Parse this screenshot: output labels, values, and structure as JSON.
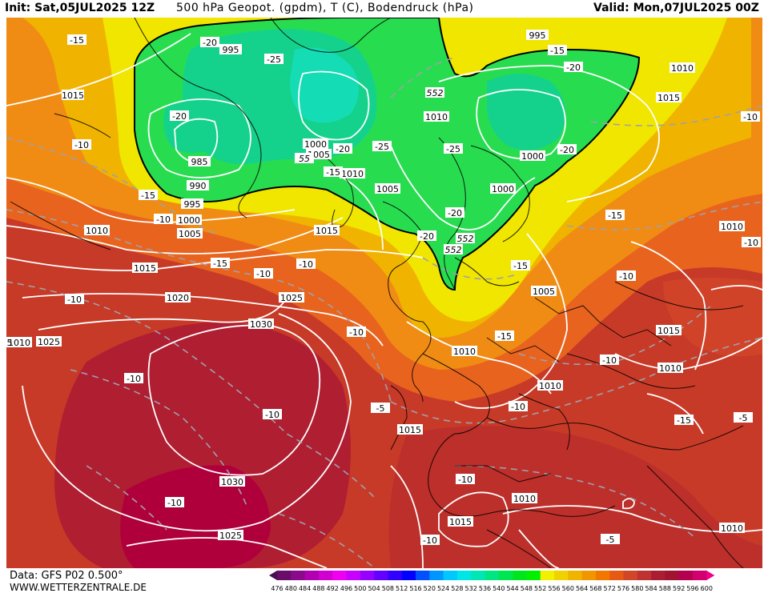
{
  "header": {
    "init": "Init: Sat,05JUL2025 12Z",
    "title": "500 hPa Geopot. (gpdm), T (C), Bodendruck (hPa)",
    "valid": "Valid: Mon,07JUL2025 00Z"
  },
  "footer": {
    "data_source": "Data: GFS P02 0.500°",
    "website": "WWW.WETTERZENTRALE.DE"
  },
  "colorbar": {
    "ticks": [
      "476",
      "480",
      "484",
      "488",
      "492",
      "496",
      "500",
      "504",
      "508",
      "512",
      "516",
      "520",
      "524",
      "528",
      "532",
      "536",
      "540",
      "544",
      "548",
      "552",
      "556",
      "560",
      "564",
      "568",
      "572",
      "576",
      "580",
      "584",
      "588",
      "592",
      "596",
      "600"
    ],
    "colors": [
      "#4b0f4b",
      "#6a0d6a",
      "#8b0a8b",
      "#b000b0",
      "#d000d0",
      "#f000f0",
      "#c800ff",
      "#9600ff",
      "#6400ff",
      "#3200ff",
      "#0000ff",
      "#0050ff",
      "#0096ff",
      "#00c8ff",
      "#00e6e6",
      "#00e6b4",
      "#00e682",
      "#00e650",
      "#00e61e",
      "#00f000",
      "#f0f000",
      "#f0d200",
      "#f0b400",
      "#f09600",
      "#f07800",
      "#e65a14",
      "#d24628",
      "#be3232",
      "#aa1e32",
      "#a01432",
      "#b40050",
      "#d2006e",
      "#f0008c"
    ]
  },
  "pressure_labels": [
    "995",
    "995",
    "1015",
    "985",
    "990",
    "995",
    "1000",
    "1005",
    "1010",
    "1005",
    "1015",
    "1010",
    "1000",
    "1005",
    "1010",
    "1000",
    "1000",
    "1015",
    "1005",
    "1010",
    "1020",
    "1025",
    "1025",
    "1030",
    "1030",
    "1025",
    "1015",
    "1010",
    "1010",
    "1015",
    "1010",
    "1015",
    "1010",
    "1015",
    "1010",
    "1010",
    "1010"
  ],
  "temperature_labels": [
    "-15",
    "-20",
    "-25",
    "-20",
    "-10",
    "-15",
    "-10",
    "-15",
    "-10",
    "-10",
    "-15",
    "-20",
    "-25",
    "-20",
    "-25",
    "-20",
    "-20",
    "-15",
    "-20",
    "-15",
    "-10",
    "-15",
    "-10",
    "-15",
    "-10",
    "-10",
    "-10",
    "-10",
    "-10",
    "-10",
    "-5",
    "-10",
    "-15",
    "-10",
    "-10",
    "-5",
    "-10",
    "-5"
  ],
  "geopotential_labels": [
    "552",
    "552",
    "552",
    "552",
    "55"
  ],
  "edge_label": "5"
}
